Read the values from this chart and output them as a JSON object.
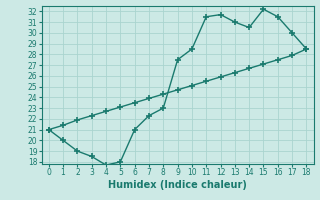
{
  "xlabel": "Humidex (Indice chaleur)",
  "bg_color": "#cce9e5",
  "line_color": "#1a7a6e",
  "grid_color": "#aad4cf",
  "curve1_x": [
    0,
    1,
    2,
    3,
    4,
    5,
    6,
    7,
    8,
    9,
    10,
    11,
    12,
    13,
    14,
    15,
    16,
    17,
    18
  ],
  "curve1_y": [
    21,
    20,
    19,
    18.5,
    17.7,
    18.0,
    21.0,
    22.3,
    23.0,
    27.5,
    28.5,
    31.5,
    31.7,
    31.0,
    30.5,
    32.2,
    31.5,
    30.0,
    28.5
  ],
  "curve2_x": [
    0,
    1,
    2,
    3,
    4,
    5,
    6,
    7,
    8,
    9,
    10,
    11,
    12,
    13,
    14,
    15,
    16,
    17,
    18
  ],
  "curve2_y": [
    21,
    21.4,
    21.9,
    22.3,
    22.7,
    23.1,
    23.5,
    23.9,
    24.3,
    24.7,
    25.1,
    25.5,
    25.9,
    26.3,
    26.7,
    27.1,
    27.5,
    27.9,
    28.5
  ],
  "xlim": [
    -0.5,
    18.5
  ],
  "ylim": [
    17.8,
    32.5
  ],
  "yticks": [
    18,
    19,
    20,
    21,
    22,
    23,
    24,
    25,
    26,
    27,
    28,
    29,
    30,
    31,
    32
  ],
  "xticks": [
    0,
    1,
    2,
    3,
    4,
    5,
    6,
    7,
    8,
    9,
    10,
    11,
    12,
    13,
    14,
    15,
    16,
    17,
    18
  ],
  "marker": "+",
  "markersize": 5,
  "linewidth": 1.0,
  "xlabel_fontsize": 7,
  "tick_fontsize": 5.5
}
